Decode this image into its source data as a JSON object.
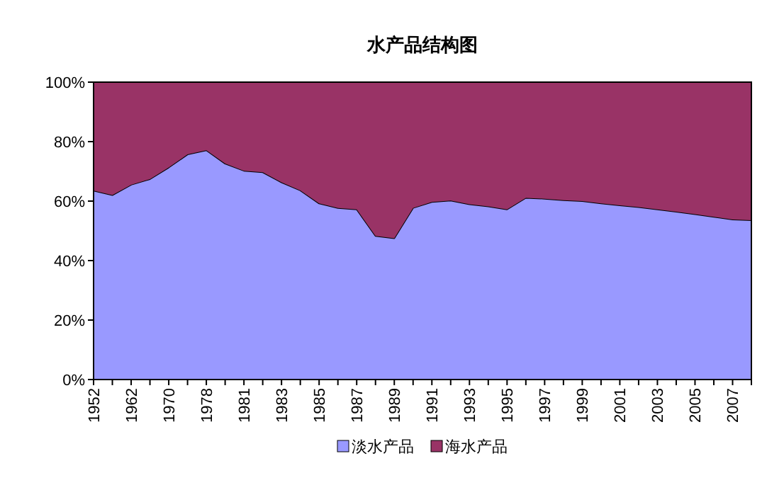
{
  "chart_data": {
    "type": "area",
    "title": "水产品结构图",
    "stacked": true,
    "categories": [
      "1952",
      null,
      "1962",
      null,
      "1970",
      null,
      "1978",
      null,
      "1981",
      null,
      "1983",
      null,
      "1985",
      null,
      "1987",
      null,
      "1989",
      null,
      "1991",
      null,
      "1993",
      null,
      "1995",
      null,
      "1997",
      null,
      "1999",
      null,
      "2001",
      null,
      "2003",
      null,
      "2005",
      null,
      "2007",
      null
    ],
    "series": [
      {
        "name": "淡水产品",
        "color": "#9999ff",
        "values": [
          63.5,
          62,
          65.5,
          67.4,
          71.3,
          75.7,
          77.1,
          72.6,
          70.2,
          69.7,
          66.3,
          63.6,
          59.2,
          57.7,
          57.2,
          48.3,
          47.5,
          57.7,
          59.7,
          60.2,
          58.9,
          58.2,
          57.2,
          61.1,
          60.8,
          60.3,
          60.0,
          59.2,
          58.6,
          58.0,
          57.2,
          56.4,
          55.6,
          54.7,
          53.8,
          53.6
        ]
      },
      {
        "name": "海水产品",
        "color": "#993366",
        "values": [
          36.5,
          38,
          34.5,
          32.6,
          28.7,
          24.3,
          22.9,
          27.4,
          29.8,
          30.3,
          33.7,
          36.4,
          40.8,
          42.3,
          42.8,
          51.7,
          52.5,
          42.3,
          40.3,
          39.8,
          41.1,
          41.8,
          42.8,
          38.9,
          39.2,
          39.7,
          40.0,
          40.8,
          41.4,
          42.0,
          42.8,
          43.6,
          44.4,
          45.3,
          46.2,
          46.4
        ]
      }
    ],
    "ylim": [
      0,
      100
    ],
    "yticks": [
      {
        "value": 0,
        "label": "0%"
      },
      {
        "value": 20,
        "label": "20%"
      },
      {
        "value": 40,
        "label": "40%"
      },
      {
        "value": 60,
        "label": "60%"
      },
      {
        "value": 80,
        "label": "80%"
      },
      {
        "value": 100,
        "label": "100%"
      }
    ],
    "legend": "bottom"
  }
}
